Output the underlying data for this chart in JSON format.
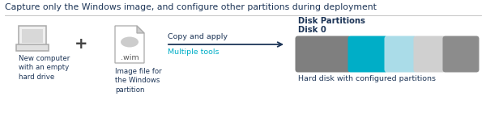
{
  "title": "Capture only the Windows image, and configure other partitions during deployment",
  "title_color": "#1d3557",
  "title_fontsize": 7.8,
  "bg_color": "#ffffff",
  "computer_label": "New computer\nwith an empty\nhard drive",
  "plus_sign": "+",
  "wim_label": "Image file for\nthe Windows\npartition",
  "arrow_label_top": "Copy and apply",
  "arrow_label_bottom": "Multiple tools",
  "arrow_label_bottom_color": "#00aec7",
  "disk_title_line1": "Disk Partitions",
  "disk_title_line2": "Disk 0",
  "disk_label": "Hard disk with configured partitions",
  "label_color": "#1d3557",
  "partition_colors": [
    "#7f7f7f",
    "#00aec7",
    "#aadce8",
    "#d0d0d0",
    "#8c8c8c"
  ],
  "partition_widths": [
    62,
    42,
    33,
    33,
    38
  ],
  "arrow_color": "#1d3557",
  "computer_color": "#999999",
  "sep_line_color": "#bbbbbb"
}
